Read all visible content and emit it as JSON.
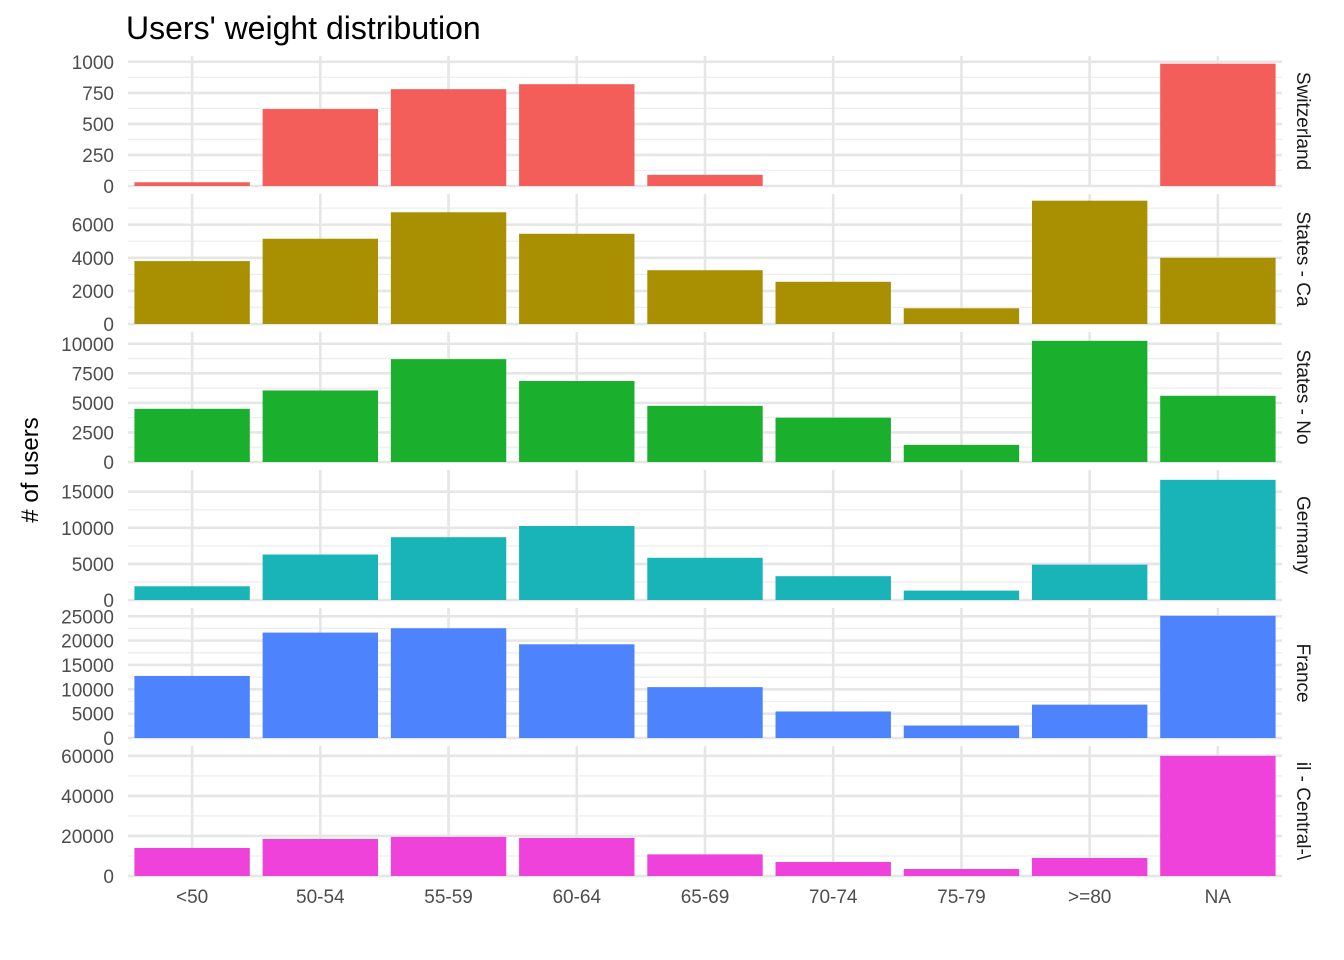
{
  "chart_data": {
    "type": "bar",
    "title": "Users' weight distribution",
    "xlabel": "",
    "ylabel": "# of users",
    "categories": [
      "<50",
      "50-54",
      "55-59",
      "60-64",
      "65-69",
      "70-74",
      "75-79",
      ">=80",
      "NA"
    ],
    "grid": true,
    "legend": "none",
    "facets": [
      {
        "label": "Switzerland",
        "color": "#F35E5A",
        "ylim": [
          0,
          1000
        ],
        "y_ticks": [
          0,
          250,
          500,
          750,
          1000
        ],
        "values": [
          30,
          620,
          780,
          820,
          90,
          0,
          0,
          0,
          985
        ]
      },
      {
        "label": "States - Ca",
        "color": "#A89002",
        "ylim": [
          0,
          7500
        ],
        "y_ticks": [
          0,
          2000,
          4000,
          6000
        ],
        "values": [
          3800,
          5150,
          6750,
          5450,
          3250,
          2550,
          950,
          7450,
          4000
        ]
      },
      {
        "label": "States - No",
        "color": "#1AB02D",
        "ylim": [
          0,
          10500
        ],
        "y_ticks": [
          0,
          2500,
          5000,
          7500,
          10000
        ],
        "values": [
          4500,
          6050,
          8700,
          6850,
          4750,
          3750,
          1450,
          10250,
          5600
        ]
      },
      {
        "label": "Germany",
        "color": "#19B4B7",
        "ylim": [
          0,
          17200
        ],
        "y_ticks": [
          0,
          5000,
          10000,
          15000
        ],
        "values": [
          1900,
          6300,
          8700,
          10250,
          5850,
          3300,
          1300,
          4900,
          16650
        ]
      },
      {
        "label": "France",
        "color": "#4E83FE",
        "ylim": [
          0,
          25500
        ],
        "y_ticks": [
          0,
          5000,
          10000,
          15000,
          20000,
          25000
        ],
        "values": [
          12750,
          21650,
          22550,
          19250,
          10450,
          5450,
          2550,
          6850,
          25100
        ]
      },
      {
        "label": "il - Central-\\",
        "color": "#EE42DA",
        "ylim": [
          0,
          62000
        ],
        "y_ticks": [
          0,
          20000,
          40000,
          60000
        ],
        "values": [
          14000,
          18500,
          19500,
          19000,
          10800,
          7000,
          3500,
          9000,
          60000
        ]
      }
    ]
  }
}
